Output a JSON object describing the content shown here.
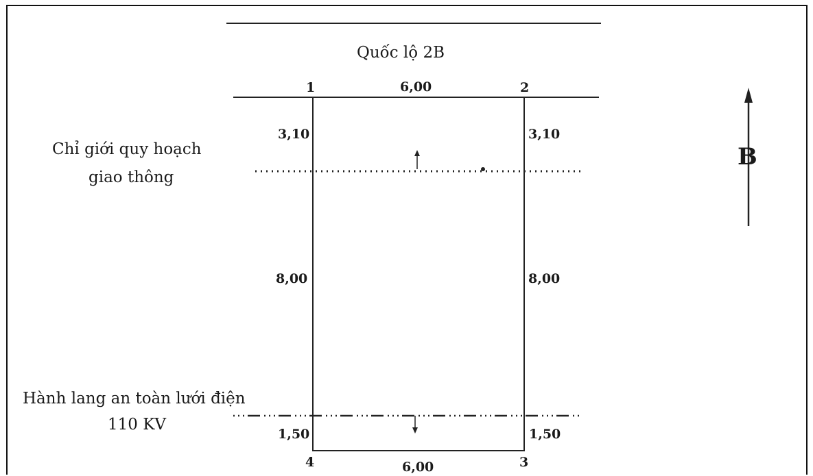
{
  "road_label": "Quốc lộ 2B",
  "points": {
    "p1": "1",
    "p2": "2",
    "p3": "3",
    "p4": "4"
  },
  "dimensions": {
    "top_width": "6,00",
    "bottom_width": "6,00",
    "left_upper": "3,10",
    "right_upper": "3,10",
    "left_middle": "8,00",
    "right_middle": "8,00",
    "left_lower": "1,50",
    "right_lower": "1,50"
  },
  "traffic_boundary": {
    "line1": "Chỉ giới quy hoạch",
    "line2": "giao thông"
  },
  "power_corridor": {
    "line1": "Hành lang an toàn lưới điện",
    "line2": "110 KV"
  },
  "north_label": "B"
}
